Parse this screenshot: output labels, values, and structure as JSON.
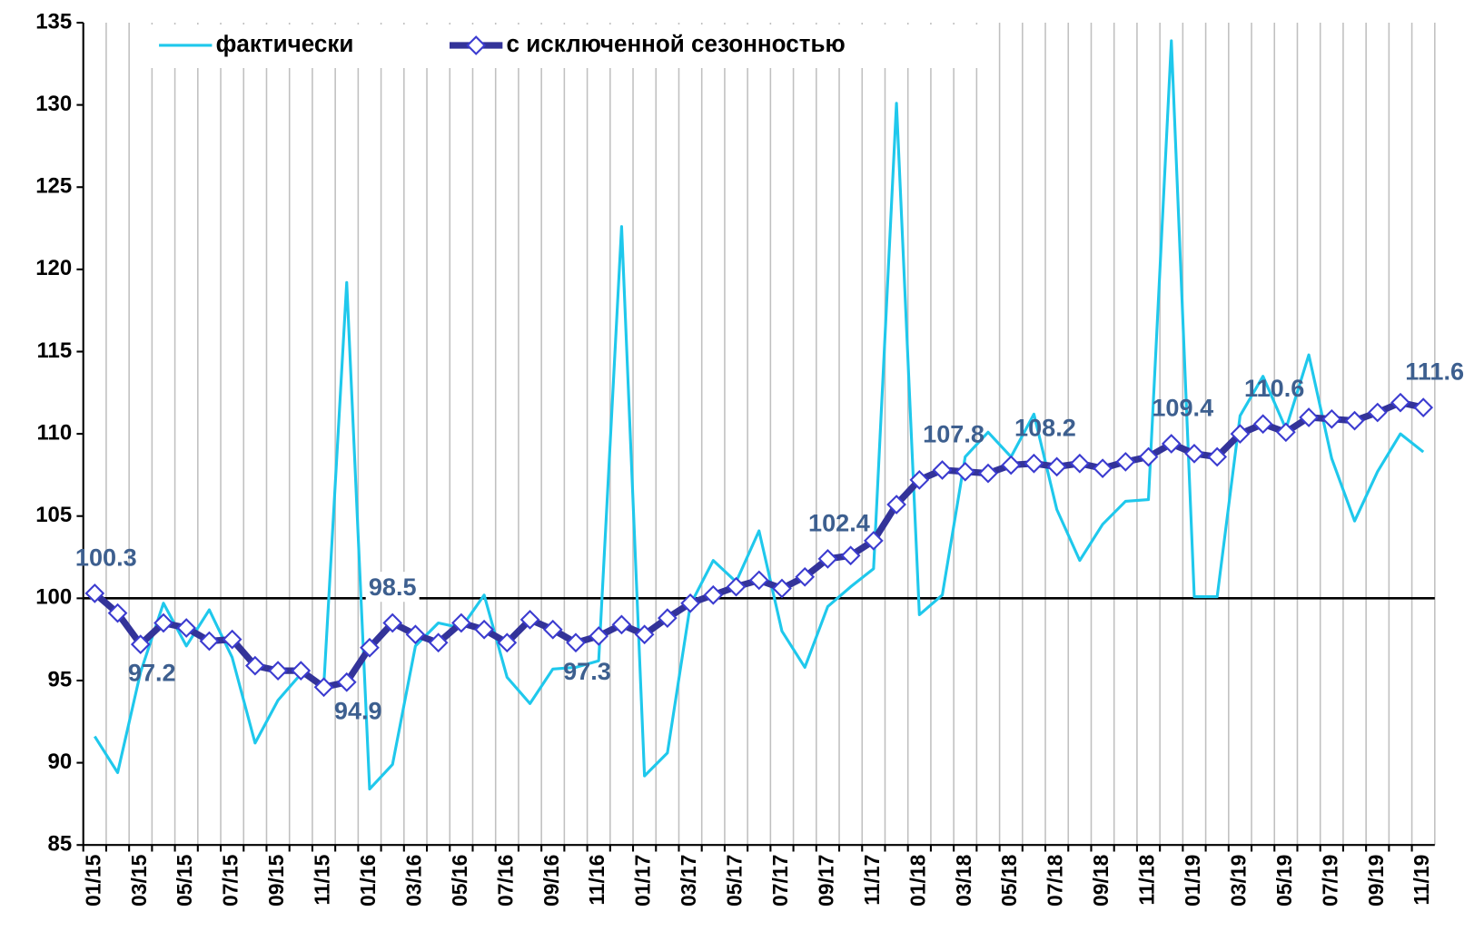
{
  "chart_data": {
    "type": "line",
    "categories": [
      "01/15",
      null,
      "03/15",
      null,
      "05/15",
      null,
      "07/15",
      null,
      "09/15",
      null,
      "11/15",
      null,
      "01/16",
      null,
      "03/16",
      null,
      "05/16",
      null,
      "07/16",
      null,
      "09/16",
      null,
      "11/16",
      null,
      "01/17",
      null,
      "03/17",
      null,
      "05/17",
      null,
      "07/17",
      null,
      "09/17",
      null,
      "11/17",
      null,
      "01/18",
      null,
      "03/18",
      null,
      "05/18",
      null,
      "07/18",
      null,
      "09/18",
      null,
      "11/18",
      null,
      "01/19",
      null,
      "03/19",
      null,
      "05/19",
      null,
      "07/19",
      null,
      "09/19",
      null,
      "11/19"
    ],
    "series": [
      {
        "name": "фактически",
        "color": "#1fc8ec",
        "values": [
          91.6,
          89.4,
          95.5,
          99.7,
          97.1,
          99.3,
          96.4,
          91.2,
          93.8,
          95.4,
          94.7,
          119.2,
          88.4,
          89.9,
          97.1,
          98.5,
          98.2,
          100.2,
          95.2,
          93.6,
          95.7,
          95.8,
          96.2,
          122.6,
          89.2,
          90.6,
          99.6,
          102.3,
          101.0,
          104.1,
          98.0,
          95.8,
          99.5,
          100.7,
          101.8,
          130.1,
          99.0,
          100.2,
          108.6,
          110.1,
          108.6,
          111.2,
          105.4,
          102.3,
          104.5,
          105.9,
          106.0,
          133.9,
          100.1,
          100.1,
          111.1,
          113.5,
          110.3,
          114.8,
          108.5,
          104.7,
          107.7,
          110.0,
          108.9
        ]
      },
      {
        "name": "с исключенной сезонностью",
        "color": "#333399",
        "marker_color": "#3b3bd0",
        "values": [
          100.3,
          99.1,
          97.2,
          98.5,
          98.2,
          97.4,
          97.5,
          95.9,
          95.6,
          95.6,
          94.6,
          94.9,
          97.0,
          98.5,
          97.8,
          97.3,
          98.5,
          98.1,
          97.3,
          98.7,
          98.1,
          97.3,
          97.7,
          98.4,
          97.8,
          98.8,
          99.7,
          100.2,
          100.7,
          101.1,
          100.6,
          101.3,
          102.4,
          102.6,
          103.5,
          105.7,
          107.2,
          107.8,
          107.7,
          107.6,
          108.1,
          108.2,
          108.0,
          108.2,
          107.9,
          108.3,
          108.6,
          109.4,
          108.8,
          108.6,
          110.0,
          110.6,
          110.1,
          111.0,
          110.9,
          110.8,
          111.3,
          111.9,
          111.6
        ],
        "value_labels": [
          "100.3",
          null,
          "97.2",
          null,
          null,
          null,
          null,
          null,
          null,
          null,
          null,
          "94.9",
          null,
          "98.5",
          null,
          null,
          null,
          null,
          null,
          null,
          null,
          "97.3",
          null,
          null,
          null,
          null,
          null,
          null,
          null,
          null,
          null,
          null,
          "102.4",
          null,
          null,
          null,
          null,
          "107.8",
          null,
          null,
          null,
          "108.2",
          null,
          null,
          null,
          null,
          null,
          "109.4",
          null,
          null,
          null,
          "110.6",
          null,
          null,
          null,
          null,
          null,
          null,
          "111.6"
        ]
      }
    ],
    "ylim": [
      85,
      135
    ],
    "yticks": [
      85,
      90,
      95,
      100,
      105,
      110,
      115,
      120,
      125,
      130,
      135
    ],
    "reference_line": 100,
    "grid": "vertical",
    "legend": "top-left"
  }
}
